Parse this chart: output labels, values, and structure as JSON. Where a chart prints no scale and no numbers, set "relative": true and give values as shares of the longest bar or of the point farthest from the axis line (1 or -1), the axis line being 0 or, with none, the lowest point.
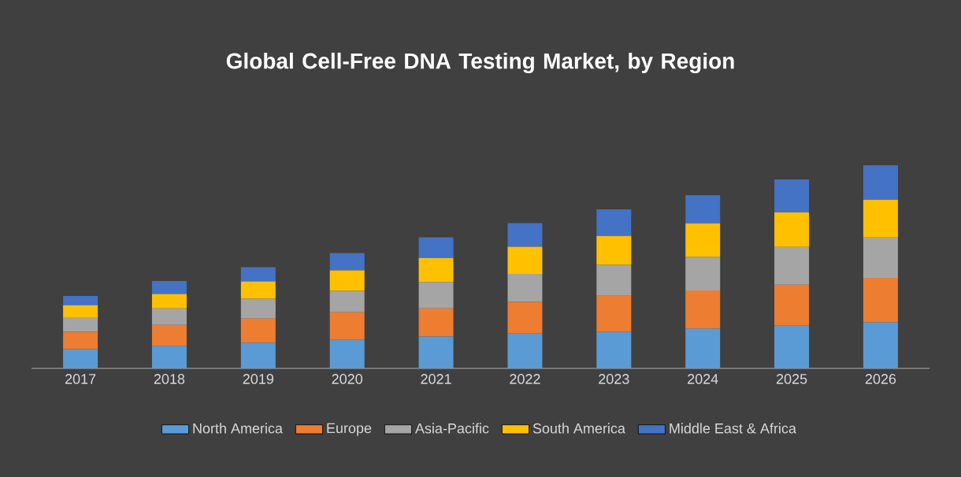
{
  "chart_data": {
    "type": "bar",
    "title": "Global Cell-Free DNA Testing Market, by Region",
    "stacked": true,
    "relative": true,
    "legend": "bottom",
    "categories": [
      "2017",
      "2018",
      "2019",
      "2020",
      "2021",
      "2022",
      "2023",
      "2024",
      "2025",
      "2026"
    ],
    "series": [
      {
        "name": "North America",
        "color": "#5b9bd5",
        "values": [
          0.095,
          0.111,
          0.126,
          0.142,
          0.157,
          0.173,
          0.18,
          0.196,
          0.211,
          0.227
        ]
      },
      {
        "name": "Europe",
        "color": "#ed7d31",
        "values": [
          0.085,
          0.103,
          0.119,
          0.134,
          0.139,
          0.155,
          0.178,
          0.188,
          0.201,
          0.219
        ]
      },
      {
        "name": "Asia-Pacific",
        "color": "#a5a5a5",
        "values": [
          0.072,
          0.082,
          0.098,
          0.106,
          0.129,
          0.137,
          0.152,
          0.165,
          0.186,
          0.198
        ]
      },
      {
        "name": "South America",
        "color": "#ffc000",
        "values": [
          0.059,
          0.07,
          0.085,
          0.101,
          0.119,
          0.134,
          0.142,
          0.165,
          0.17,
          0.186
        ]
      },
      {
        "name": "Middle East & Africa",
        "color": "#4472c4",
        "values": [
          0.046,
          0.064,
          0.07,
          0.085,
          0.101,
          0.116,
          0.131,
          0.139,
          0.162,
          0.17
        ]
      }
    ]
  }
}
